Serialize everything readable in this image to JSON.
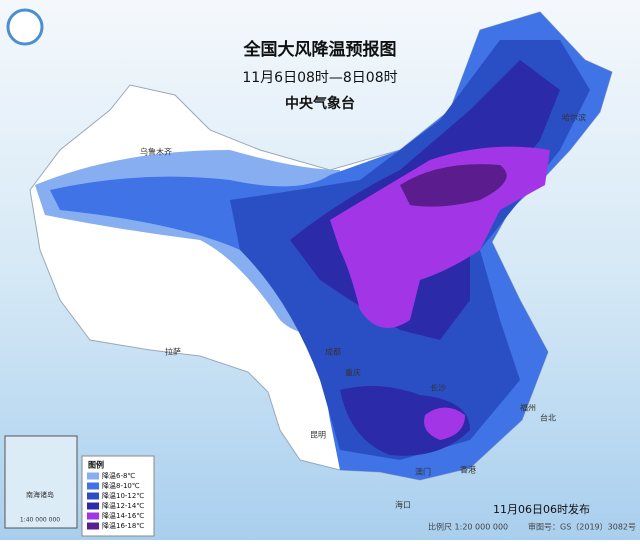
{
  "header": {
    "title": "全国大风降温预报图",
    "subtitle": "11月6日08时—8日08时",
    "issuer": "中央气象台"
  },
  "legend": {
    "title": "图例",
    "items": [
      {
        "label": "降温6-8℃",
        "color": "#86aef0"
      },
      {
        "label": "降温8-10℃",
        "color": "#3f73e6"
      },
      {
        "label": "降温10-12℃",
        "color": "#2a4fc4"
      },
      {
        "label": "降温12-14℃",
        "color": "#2b2aa8"
      },
      {
        "label": "降温14-16℃",
        "color": "#a236e6"
      },
      {
        "label": "降温16-18℃",
        "color": "#5b1c8e"
      }
    ]
  },
  "cities": [
    "乌鲁木齐",
    "哈尔滨",
    "拉萨",
    "成都",
    "重庆",
    "昆明",
    "长沙",
    "香港",
    "澳门",
    "海口",
    "台北",
    "福州"
  ],
  "inset": {
    "label": "南海诸岛",
    "scale": "1:40 000 000"
  },
  "footer": {
    "issued": "11月06日06时发布",
    "scale": "比例尺 1:20 000 000",
    "review": "审图号：GS（2019）3082号"
  }
}
